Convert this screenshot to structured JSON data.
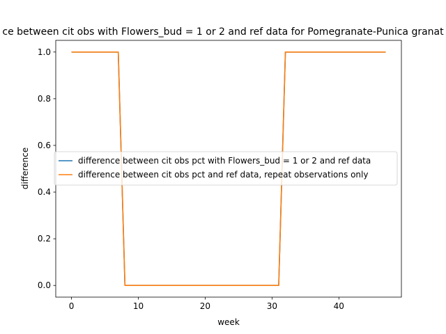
{
  "chart_data": {
    "type": "line",
    "title": "ce between cit obs with Flowers_bud = 1 or 2 and ref data for Pomegranate-Punica granat",
    "xlabel": "week",
    "ylabel": "difference",
    "xlim": [
      -2.35,
      49.35
    ],
    "ylim": [
      -0.05,
      1.05
    ],
    "xticks": [
      0,
      10,
      20,
      30,
      40
    ],
    "yticks": [
      0.0,
      0.2,
      0.4,
      0.6,
      0.8,
      1.0
    ],
    "xtick_labels": [
      "0",
      "10",
      "20",
      "30",
      "40"
    ],
    "ytick_labels": [
      "0.0",
      "0.2",
      "0.4",
      "0.6",
      "0.8",
      "1.0"
    ],
    "legend_placement": "center-right",
    "grid": false,
    "x": [
      0,
      1,
      2,
      3,
      4,
      5,
      6,
      7,
      8,
      9,
      10,
      11,
      12,
      13,
      14,
      15,
      16,
      17,
      18,
      19,
      20,
      21,
      22,
      23,
      24,
      25,
      26,
      27,
      28,
      29,
      30,
      31,
      32,
      33,
      34,
      35,
      36,
      37,
      38,
      39,
      40,
      41,
      42,
      43,
      44,
      45,
      46,
      47
    ],
    "series": [
      {
        "name": "difference between cit obs pct with Flowers_bud = 1 or 2 and ref data",
        "color": "#1f77b4",
        "values": [
          1,
          1,
          1,
          1,
          1,
          1,
          1,
          1,
          0,
          0,
          0,
          0,
          0,
          0,
          0,
          0,
          0,
          0,
          0,
          0,
          0,
          0,
          0,
          0,
          0,
          0,
          0,
          0,
          0,
          0,
          0,
          0,
          1,
          1,
          1,
          1,
          1,
          1,
          1,
          1,
          1,
          1,
          1,
          1,
          1,
          1,
          1,
          1
        ]
      },
      {
        "name": "difference between cit obs pct and ref data, repeat observations only",
        "color": "#ff7f0e",
        "values": [
          1,
          1,
          1,
          1,
          1,
          1,
          1,
          1,
          0,
          0,
          0,
          0,
          0,
          0,
          0,
          0,
          0,
          0,
          0,
          0,
          0,
          0,
          0,
          0,
          0,
          0,
          0,
          0,
          0,
          0,
          0,
          0,
          1,
          1,
          1,
          1,
          1,
          1,
          1,
          1,
          1,
          1,
          1,
          1,
          1,
          1,
          1,
          1
        ]
      }
    ]
  }
}
